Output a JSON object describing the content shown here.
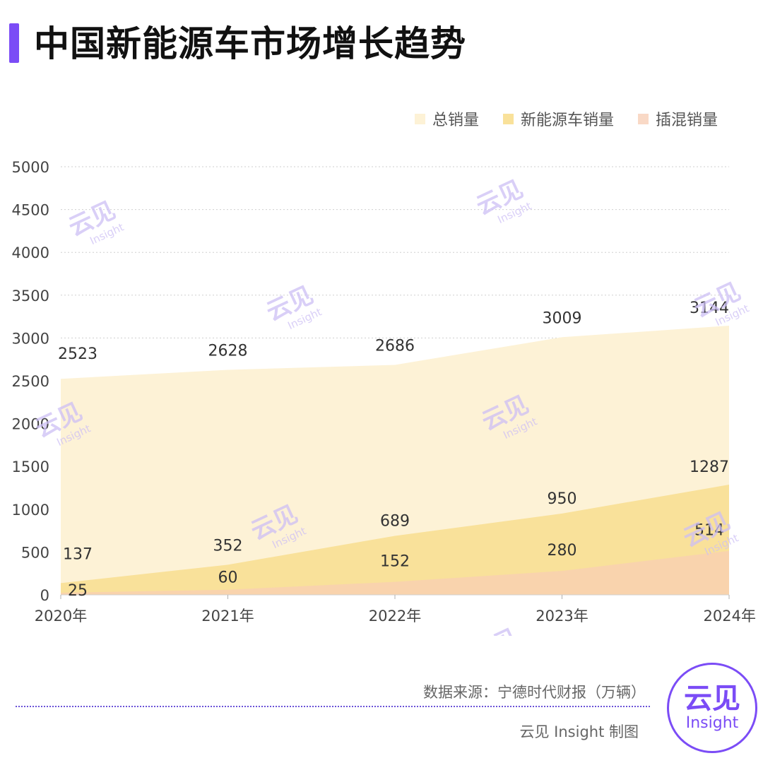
{
  "title": "中国新能源车市场增长趋势",
  "source": "数据来源：宁德时代财报（万辆）",
  "credit": "云见 Insight 制图",
  "logo": {
    "cn": "云见",
    "en": "Insight"
  },
  "watermark": {
    "cn": "云见",
    "en": "Insight"
  },
  "colors": {
    "accent": "#7b4cf6",
    "total": "#fdf2d6",
    "nev": "#f9e19a",
    "phev": "#f9d0b0"
  },
  "chart_data": {
    "type": "area",
    "categories": [
      "2020年",
      "2021年",
      "2022年",
      "2023年",
      "2024年"
    ],
    "ylim": [
      0,
      5000
    ],
    "yticks": [
      0,
      500,
      1000,
      1500,
      2000,
      2500,
      3000,
      3500,
      4000,
      4500,
      5000
    ],
    "grid": true,
    "legend_position": "top-right",
    "series": [
      {
        "name": "总销量",
        "values": [
          2523,
          2628,
          2686,
          3009,
          3144
        ]
      },
      {
        "name": "新能源车销量",
        "values": [
          137,
          352,
          689,
          950,
          1287
        ]
      },
      {
        "name": "插混销量",
        "values": [
          25,
          60,
          152,
          280,
          514
        ]
      }
    ]
  }
}
